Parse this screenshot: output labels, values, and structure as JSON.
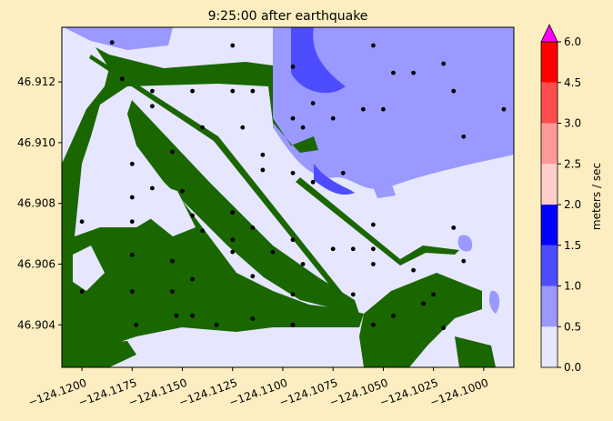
{
  "chart_data": {
    "type": "heatmap",
    "title": "9:25:00 after earthquake",
    "xlim": [
      -124.121,
      -124.0985
    ],
    "ylim": [
      46.9026,
      46.9138
    ],
    "xticks": [
      {
        "value": -124.12,
        "label": "−124.1200"
      },
      {
        "value": -124.1175,
        "label": "−124.1175"
      },
      {
        "value": -124.115,
        "label": "−124.1150"
      },
      {
        "value": -124.1125,
        "label": "−124.1125"
      },
      {
        "value": -124.11,
        "label": "−124.1100"
      },
      {
        "value": -124.1075,
        "label": "−124.1075"
      },
      {
        "value": -124.105,
        "label": "−124.1050"
      },
      {
        "value": -124.1025,
        "label": "−124.1025"
      },
      {
        "value": -124.1,
        "label": "−124.1000"
      }
    ],
    "yticks": [
      {
        "value": 46.904,
        "label": "46.904"
      },
      {
        "value": 46.906,
        "label": "46.906"
      },
      {
        "value": 46.908,
        "label": "46.908"
      },
      {
        "value": 46.91,
        "label": "46.910"
      },
      {
        "value": 46.912,
        "label": "46.912"
      }
    ],
    "colorbar": {
      "label": "meters / sec",
      "extend": "max",
      "levels": [
        {
          "from": 0.0,
          "to": 0.5,
          "color": "#e6e6ff"
        },
        {
          "from": 0.5,
          "to": 1.0,
          "color": "#9999ff"
        },
        {
          "from": 1.0,
          "to": 1.5,
          "color": "#4d4dff"
        },
        {
          "from": 1.5,
          "to": 2.0,
          "color": "#0000ff"
        },
        {
          "from": 2.0,
          "to": 2.5,
          "color": "#ffcccc"
        },
        {
          "from": 2.5,
          "to": 3.0,
          "color": "#ff9999"
        },
        {
          "from": 3.0,
          "to": 4.5,
          "color": "#ff4d4d"
        },
        {
          "from": 4.5,
          "to": 6.0,
          "color": "#ff0000"
        }
      ],
      "over_color": "#ff00ff",
      "tick_labels": [
        "0.0",
        "0.5",
        "1.0",
        "1.5",
        "2.0",
        "2.5",
        "3.0",
        "4.5",
        "6.0"
      ]
    },
    "land_color": "#1a6600",
    "water_color": "#e6e6ff",
    "particles": [
      {
        "x": -124.1185,
        "y": 46.9133
      },
      {
        "x": -124.1125,
        "y": 46.9132
      },
      {
        "x": -124.1095,
        "y": 46.9125
      },
      {
        "x": -124.1055,
        "y": 46.9132
      },
      {
        "x": -124.1045,
        "y": 46.9123
      },
      {
        "x": -124.1035,
        "y": 46.9123
      },
      {
        "x": -124.102,
        "y": 46.9126
      },
      {
        "x": -124.1015,
        "y": 46.9117
      },
      {
        "x": -124.099,
        "y": 46.9111
      },
      {
        "x": -124.118,
        "y": 46.9121
      },
      {
        "x": -124.1165,
        "y": 46.9117
      },
      {
        "x": -124.1145,
        "y": 46.9117
      },
      {
        "x": -124.1125,
        "y": 46.9117
      },
      {
        "x": -124.1115,
        "y": 46.9117
      },
      {
        "x": -124.1085,
        "y": 46.9113
      },
      {
        "x": -124.1075,
        "y": 46.9108
      },
      {
        "x": -124.106,
        "y": 46.9111
      },
      {
        "x": -124.105,
        "y": 46.9111
      },
      {
        "x": -124.101,
        "y": 46.9102
      },
      {
        "x": -124.1165,
        "y": 46.9112
      },
      {
        "x": -124.114,
        "y": 46.9105
      },
      {
        "x": -124.112,
        "y": 46.9105
      },
      {
        "x": -124.1095,
        "y": 46.9108
      },
      {
        "x": -124.109,
        "y": 46.9105
      },
      {
        "x": -124.111,
        "y": 46.9096
      },
      {
        "x": -124.111,
        "y": 46.9091
      },
      {
        "x": -124.1095,
        "y": 46.909
      },
      {
        "x": -124.1085,
        "y": 46.9087
      },
      {
        "x": -124.107,
        "y": 46.909
      },
      {
        "x": -124.1175,
        "y": 46.9093
      },
      {
        "x": -124.1155,
        "y": 46.9097
      },
      {
        "x": -124.1165,
        "y": 46.9085
      },
      {
        "x": -124.115,
        "y": 46.9084
      },
      {
        "x": -124.1175,
        "y": 46.9082
      },
      {
        "x": -124.1145,
        "y": 46.9076
      },
      {
        "x": -124.1125,
        "y": 46.9077
      },
      {
        "x": -124.12,
        "y": 46.9074
      },
      {
        "x": -124.1175,
        "y": 46.9074
      },
      {
        "x": -124.114,
        "y": 46.9071
      },
      {
        "x": -124.1125,
        "y": 46.9068
      },
      {
        "x": -124.1115,
        "y": 46.9072
      },
      {
        "x": -124.1095,
        "y": 46.9068
      },
      {
        "x": -124.1055,
        "y": 46.9073
      },
      {
        "x": -124.1015,
        "y": 46.9072
      },
      {
        "x": -124.1075,
        "y": 46.9065
      },
      {
        "x": -124.1065,
        "y": 46.9065
      },
      {
        "x": -124.1055,
        "y": 46.9065
      },
      {
        "x": -124.1175,
        "y": 46.9063
      },
      {
        "x": -124.1155,
        "y": 46.9061
      },
      {
        "x": -124.1125,
        "y": 46.9064
      },
      {
        "x": -124.1105,
        "y": 46.9064
      },
      {
        "x": -124.109,
        "y": 46.906
      },
      {
        "x": -124.1055,
        "y": 46.906
      },
      {
        "x": -124.1035,
        "y": 46.9058
      },
      {
        "x": -124.101,
        "y": 46.9061
      },
      {
        "x": -124.12,
        "y": 46.9051
      },
      {
        "x": -124.1175,
        "y": 46.9051
      },
      {
        "x": -124.1155,
        "y": 46.9051
      },
      {
        "x": -124.1145,
        "y": 46.9055
      },
      {
        "x": -124.1115,
        "y": 46.9056
      },
      {
        "x": -124.1095,
        "y": 46.905
      },
      {
        "x": -124.1065,
        "y": 46.905
      },
      {
        "x": -124.1025,
        "y": 46.905
      },
      {
        "x": -124.103,
        "y": 46.9047
      },
      {
        "x": -124.1045,
        "y": 46.9043
      },
      {
        "x": -124.1173,
        "y": 46.904
      },
      {
        "x": -124.1153,
        "y": 46.9043
      },
      {
        "x": -124.1145,
        "y": 46.9043
      },
      {
        "x": -124.1133,
        "y": 46.904
      },
      {
        "x": -124.1115,
        "y": 46.9042
      },
      {
        "x": -124.1095,
        "y": 46.904
      },
      {
        "x": -124.1055,
        "y": 46.904
      },
      {
        "x": -124.102,
        "y": 46.9039
      }
    ]
  }
}
